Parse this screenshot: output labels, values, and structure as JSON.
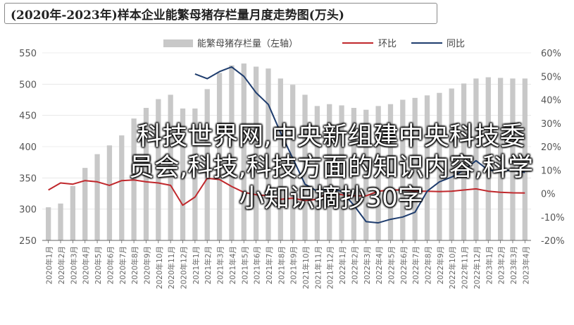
{
  "title": "(2020年-2023年)样本企业能繁母猪存栏量月度走势图(万头)",
  "overlay_text": "科技世界网,中央新组建中央科技委员会,科技,科技方面的知识内容,科学小知识摘抄30字",
  "colors": {
    "bar": "#c8c8c8",
    "yoy": "#c0282c",
    "mom": "#1f3d6e",
    "axis": "#666666",
    "grid": "#d9d9d9"
  },
  "chart_data": {
    "type": "bar",
    "categories": [
      "2020-01",
      "2020-02",
      "2020-03",
      "2020-04",
      "2020-05",
      "2020-06",
      "2020-07",
      "2020-08",
      "2020-09",
      "2020-10",
      "2020-11",
      "2020-12",
      "2021-01",
      "2021-02",
      "2021-03",
      "2021-04",
      "2021-05",
      "2021-06",
      "2021-07",
      "2021-08",
      "2021-09",
      "2021-10",
      "2021-11",
      "2021-12",
      "2022-01",
      "2022-02",
      "2022-03",
      "2022-04",
      "2022-05",
      "2022-06",
      "2022-07",
      "2022-08",
      "2022-09",
      "2022-10",
      "2022-11",
      "2022-12",
      "2023-01",
      "2023-02",
      "2023-03",
      "2023-04"
    ],
    "x_tick_labels": [
      "2020年1月",
      "2020年2月",
      "2020年3月",
      "2020年4月",
      "2020年5月",
      "2020年6月",
      "2020年7月",
      "2020年8月",
      "2020年9月",
      "2020年10月",
      "2020年11月",
      "2020年12月",
      "2021年1月",
      "2021年2月",
      "2021年3月",
      "2021年4月",
      "2021年5月",
      "2021年6月",
      "2021年7月",
      "2021年8月",
      "2021年9月",
      "2021年10月",
      "2021年11月",
      "2021年12月",
      "2022年1月",
      "2022年2月",
      "2022年3月",
      "2022年4月",
      "2022年5月",
      "2022年6月",
      "2022年7月",
      "2022年8月",
      "2022年9月",
      "2022年10月",
      "2022年11月",
      "2022年12月",
      "2023年1月",
      "2023年2月",
      "2023年3月",
      "2023年4月"
    ],
    "left_axis": {
      "ticks": [
        "250",
        "300",
        "350",
        "400",
        "450",
        "500",
        "550"
      ],
      "ylim": [
        250,
        550
      ]
    },
    "right_axis": {
      "ticks": [
        "-20%",
        "-10%",
        "0%",
        "10%",
        "20%",
        "30%",
        "40%",
        "50%",
        "60%"
      ],
      "ylim": [
        -20,
        60
      ]
    },
    "legend": {
      "position": "top",
      "items": [
        "能繁母猪存栏量（左轴）",
        "环比",
        "同比"
      ]
    },
    "series": [
      {
        "name": "能繁母猪存栏量（左轴）",
        "type": "bar",
        "axis": "left",
        "values": [
          303,
          309,
          337,
          366,
          388,
          402,
          418,
          445,
          462,
          476,
          483,
          461,
          461,
          492,
          518,
          530,
          533,
          528,
          525,
          509,
          499,
          483,
          465,
          468,
          466,
          462,
          459,
          465,
          468,
          475,
          478,
          482,
          486,
          493,
          501,
          509,
          511,
          510,
          509,
          509
        ]
      },
      {
        "name": "环比",
        "type": "line",
        "axis": "right",
        "values": [
          1.5,
          4.5,
          4.0,
          5.5,
          5.0,
          3.5,
          5.5,
          5.8,
          5.0,
          4.5,
          3.5,
          -5.0,
          -1.5,
          6.5,
          6.0,
          3.0,
          0.5,
          -0.5,
          -1.0,
          -2.5,
          -2.0,
          -3.0,
          -2.5,
          0.5,
          -0.5,
          -1.0,
          -1.0,
          1.0,
          1.5,
          1.5,
          1.0,
          1.0,
          0.8,
          1.0,
          1.5,
          2.0,
          1.0,
          0.5,
          0.3,
          0.2
        ]
      },
      {
        "name": "同比",
        "type": "line",
        "axis": "right",
        "values": [
          null,
          null,
          null,
          null,
          null,
          null,
          null,
          null,
          null,
          null,
          null,
          null,
          51.0,
          49.0,
          52.0,
          54.0,
          50.0,
          43.0,
          38.0,
          26.0,
          15.0,
          4.0,
          1.0,
          2.0,
          1.0,
          -5.0,
          -12.0,
          -12.5,
          -11.0,
          -10.0,
          -8.0,
          1.0,
          5.0,
          7.0,
          10.0,
          14.0,
          10.0,
          9.5,
          10.0,
          9.0
        ]
      }
    ]
  }
}
